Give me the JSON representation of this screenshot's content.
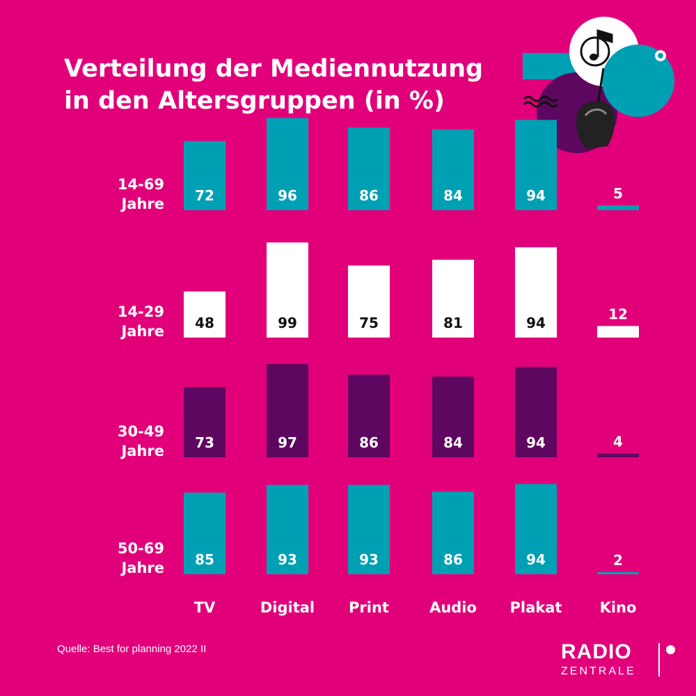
{
  "title": {
    "line1": "Verteilung der Mediennutzung",
    "line2": "in den Altersgruppen (in %)"
  },
  "source": "Quelle: Best for planning 2022 II",
  "logo": {
    "line1": "RADIO",
    "line2": "ZENTRALE"
  },
  "decoration": {
    "icons": [
      "music-note-icon",
      "hand-holding-pin-icon",
      "wave-icon",
      "ring-icon"
    ]
  },
  "colors": {
    "background": "#E2007A",
    "teal": "#00A0B4",
    "white": "#FFFFFF",
    "purple": "#5E0760",
    "label_dark": "#111111"
  },
  "chart_data": {
    "type": "bar",
    "title": "Verteilung der Mediennutzung in den Altersgruppen (in %)",
    "categories": [
      "TV",
      "Digital",
      "Print",
      "Audio",
      "Plakat",
      "Kino"
    ],
    "series": [
      {
        "name": "14-69 Jahre",
        "label_lines": [
          "14-69",
          "Jahre"
        ],
        "values": [
          72,
          96,
          86,
          84,
          94,
          5
        ],
        "color": "#00A0B4",
        "value_color": "#FFFFFF"
      },
      {
        "name": "14-29 Jahre",
        "label_lines": [
          "14-29",
          "Jahre"
        ],
        "values": [
          48,
          99,
          75,
          81,
          94,
          12
        ],
        "color": "#FFFFFF",
        "value_color": "#111111"
      },
      {
        "name": "30-49 Jahre",
        "label_lines": [
          "30-49",
          "Jahre"
        ],
        "values": [
          73,
          97,
          86,
          84,
          94,
          4
        ],
        "color": "#5E0760",
        "value_color": "#FFFFFF"
      },
      {
        "name": "50-69 Jahre",
        "label_lines": [
          "50-69",
          "Jahre"
        ],
        "values": [
          85,
          93,
          93,
          86,
          94,
          2
        ],
        "color": "#00A0B4",
        "value_color": "#FFFFFF"
      }
    ],
    "ylim": [
      0,
      100
    ],
    "legend": "none",
    "grid": false
  }
}
